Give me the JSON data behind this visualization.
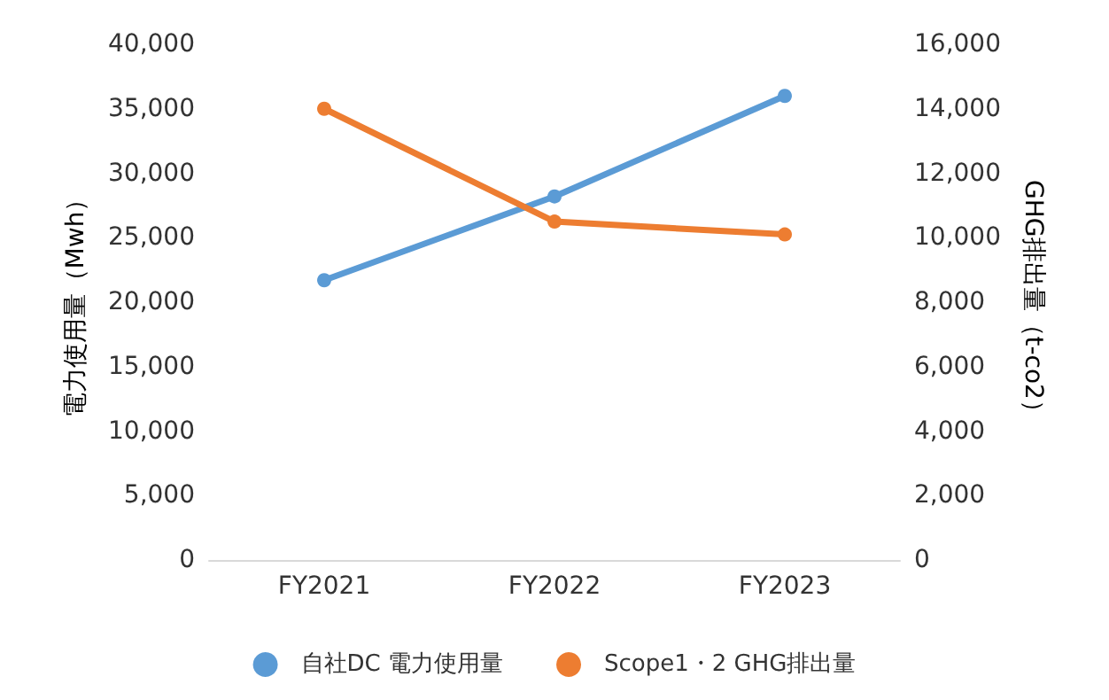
{
  "chart_data": {
    "type": "line",
    "categories": [
      "FY2021",
      "FY2022",
      "FY2023"
    ],
    "series": [
      {
        "name": "自社DC 電力使用量",
        "color": "#5b9bd5",
        "values": [
          21700,
          28200,
          36000
        ]
      },
      {
        "name": "Scope1・2 GHG排出量",
        "color": "#ed7d31",
        "values": [
          14000,
          10500,
          10100
        ],
        "axis": "y2"
      }
    ],
    "ylabel": "電力使用量（Mwh）",
    "y2label": "GHG排出量（t-co2）",
    "ylim": [
      0,
      40000
    ],
    "yticks": [
      0,
      {
        "value": 5000,
        "label": "5,000"
      },
      {
        "value": 10000,
        "label": "10,000"
      },
      {
        "value": 15000,
        "label": "15,000"
      },
      {
        "value": 20000,
        "label": "20,000"
      },
      {
        "value": 25000,
        "label": "25,000"
      },
      {
        "value": 30000,
        "label": "30,000"
      },
      {
        "value": 35000,
        "label": "35,000"
      },
      {
        "value": 40000,
        "label": "40,000"
      }
    ],
    "y2lim": [
      0,
      16000
    ],
    "y2ticks": [
      0,
      {
        "value": 2000,
        "label": "2,000"
      },
      {
        "value": 4000,
        "label": "4,000"
      },
      {
        "value": 6000,
        "label": "6,000"
      },
      {
        "value": 8000,
        "label": "8,000"
      },
      {
        "value": 10000,
        "label": "10,000"
      },
      {
        "value": 12000,
        "label": "12,000"
      },
      {
        "value": 14000,
        "label": "14,000"
      },
      {
        "value": 16000,
        "label": "16,000"
      }
    ],
    "grid": false,
    "legend": "bottom",
    "marker": "circle",
    "line_style": "solid"
  }
}
